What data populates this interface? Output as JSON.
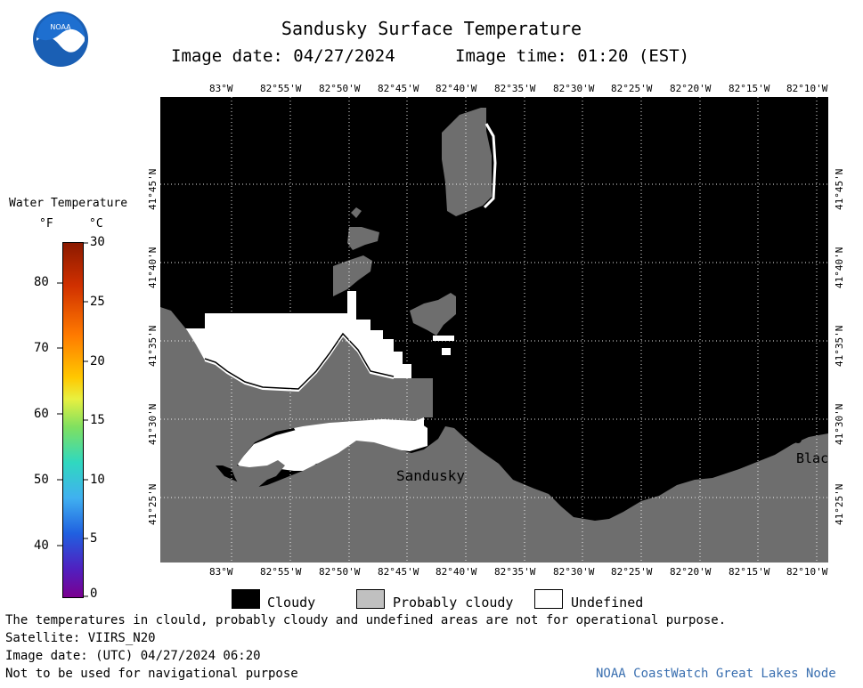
{
  "header": {
    "title": "Sandusky Surface Temperature",
    "date_label": "Image date: 04/27/2024",
    "time_label": "Image time: 01:20 (EST)",
    "logo_text": "NOAA"
  },
  "colorbar": {
    "title": "Water Temperature",
    "unit_f": "°F",
    "unit_c": "°C",
    "f_ticks": [
      "80",
      "70",
      "60",
      "50",
      "40"
    ],
    "c_ticks": [
      "30",
      "25",
      "20",
      "15",
      "10",
      "5",
      "0"
    ]
  },
  "map": {
    "lon_labels": [
      "83°W",
      "82°55'W",
      "82°50'W",
      "82°45'W",
      "82°40'W",
      "82°35'W",
      "82°30'W",
      "82°25'W",
      "82°20'W",
      "82°15'W",
      "82°10'W"
    ],
    "lat_labels": [
      "41°45'N",
      "41°40'N",
      "41°35'N",
      "41°30'N",
      "41°25'N"
    ],
    "place_sandusky": "Sandusky",
    "place_blac": "Blac",
    "colors": {
      "cloud": "#000000",
      "land": "#6e6e6e",
      "undefined": "#ffffff"
    }
  },
  "legend": {
    "cloudy": "Cloudy",
    "probably_cloudy": "Probably cloudy",
    "undefined": "Undefined"
  },
  "footer": {
    "note": "The temperatures in clould, probably cloudy and undefined areas are not for operational purpose.",
    "satellite": "Satellite: VIIRS_N20",
    "utc_date": "Image date: (UTC) 04/27/2024  06:20",
    "nav_warning": "Not to be used for navigational purpose",
    "credit": "NOAA CoastWatch Great Lakes Node"
  }
}
